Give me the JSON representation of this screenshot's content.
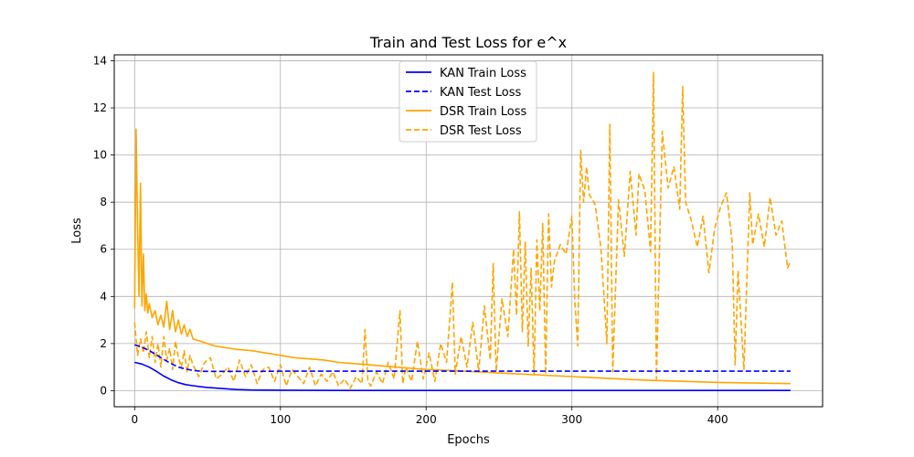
{
  "chart_data": {
    "type": "line",
    "title": "Train and Test Loss for e^x",
    "xlabel": "Epochs",
    "ylabel": "Loss",
    "xlim": [
      -14,
      472
    ],
    "ylim": [
      -0.68,
      14.25
    ],
    "xticks": [
      0,
      100,
      200,
      300,
      400
    ],
    "yticks": [
      0,
      2,
      4,
      6,
      8,
      10,
      12,
      14
    ],
    "grid": true,
    "legend_position": "upper center",
    "series": [
      {
        "name": "KAN Train Loss",
        "color": "#0000ff",
        "style": "solid",
        "x": [
          0,
          5,
          10,
          15,
          20,
          25,
          30,
          35,
          40,
          45,
          50,
          60,
          70,
          80,
          100,
          150,
          200,
          300,
          400,
          450
        ],
        "y": [
          1.2,
          1.13,
          1.0,
          0.82,
          0.62,
          0.46,
          0.34,
          0.26,
          0.21,
          0.17,
          0.14,
          0.09,
          0.05,
          0.03,
          0.02,
          0.01,
          0.01,
          0.01,
          0.01,
          0.01
        ]
      },
      {
        "name": "KAN Test Loss",
        "color": "#0000ff",
        "style": "dashed",
        "x": [
          0,
          5,
          10,
          15,
          20,
          25,
          30,
          35,
          40,
          45,
          50,
          60,
          80,
          100,
          150,
          200,
          300,
          400,
          450
        ],
        "y": [
          1.95,
          1.85,
          1.7,
          1.52,
          1.33,
          1.15,
          1.0,
          0.92,
          0.86,
          0.83,
          0.82,
          0.82,
          0.82,
          0.83,
          0.83,
          0.83,
          0.83,
          0.83,
          0.83
        ]
      },
      {
        "name": "DSR Train Loss",
        "color": "#ffa500",
        "style": "solid",
        "x": [
          0,
          1,
          2,
          3,
          4,
          5,
          6,
          7,
          8,
          9,
          10,
          12,
          14,
          16,
          18,
          20,
          22,
          24,
          26,
          28,
          30,
          32,
          34,
          36,
          38,
          40,
          45,
          50,
          55,
          60,
          65,
          70,
          80,
          90,
          100,
          110,
          120,
          130,
          140,
          150,
          160,
          170,
          180,
          200,
          220,
          250,
          300,
          350,
          400,
          450
        ],
        "y": [
          3.5,
          11.1,
          7.0,
          4.0,
          8.8,
          3.6,
          5.8,
          3.4,
          4.1,
          3.3,
          3.7,
          3.1,
          3.4,
          2.8,
          3.2,
          2.7,
          3.8,
          2.6,
          3.4,
          2.5,
          3.0,
          2.4,
          2.8,
          2.3,
          2.6,
          2.2,
          2.1,
          2.0,
          1.9,
          1.85,
          1.8,
          1.75,
          1.7,
          1.6,
          1.5,
          1.4,
          1.35,
          1.3,
          1.2,
          1.15,
          1.1,
          1.05,
          1.0,
          0.9,
          0.85,
          0.75,
          0.6,
          0.45,
          0.35,
          0.3
        ]
      },
      {
        "name": "DSR Test Loss",
        "color": "#ffa500",
        "style": "dashed",
        "x": [
          0,
          2,
          4,
          6,
          8,
          10,
          12,
          14,
          16,
          18,
          20,
          22,
          24,
          26,
          28,
          30,
          32,
          34,
          36,
          38,
          40,
          44,
          48,
          52,
          56,
          60,
          64,
          68,
          72,
          76,
          80,
          84,
          88,
          92,
          96,
          100,
          104,
          108,
          112,
          116,
          120,
          124,
          128,
          132,
          136,
          140,
          144,
          148,
          152,
          156,
          158,
          160,
          162,
          166,
          170,
          174,
          178,
          182,
          184,
          186,
          190,
          194,
          198,
          202,
          206,
          210,
          214,
          218,
          220,
          224,
          228,
          232,
          236,
          240,
          244,
          246,
          248,
          252,
          256,
          260,
          262,
          264,
          266,
          268,
          270,
          272,
          274,
          276,
          278,
          280,
          282,
          284,
          286,
          288,
          292,
          296,
          300,
          302,
          304,
          306,
          308,
          310,
          312,
          316,
          320,
          324,
          326,
          328,
          332,
          336,
          340,
          344,
          346,
          350,
          354,
          356,
          358,
          362,
          366,
          370,
          374,
          376,
          378,
          382,
          386,
          390,
          394,
          398,
          402,
          406,
          410,
          412,
          414,
          418,
          422,
          424,
          428,
          432,
          436,
          440,
          444,
          448,
          450
        ],
        "y": [
          2.9,
          1.5,
          2.2,
          1.6,
          2.5,
          1.4,
          2.3,
          1.2,
          2.0,
          1.0,
          2.3,
          1.3,
          1.8,
          0.9,
          2.1,
          1.4,
          1.0,
          1.7,
          0.8,
          1.5,
          1.1,
          0.6,
          1.2,
          1.4,
          0.5,
          0.7,
          1.0,
          0.4,
          1.3,
          0.6,
          1.1,
          0.3,
          0.9,
          1.0,
          0.4,
          1.1,
          0.2,
          0.9,
          0.6,
          0.3,
          1.0,
          0.2,
          0.7,
          0.4,
          0.8,
          0.2,
          0.5,
          0.1,
          0.6,
          0.3,
          2.6,
          0.4,
          0.2,
          0.8,
          0.3,
          1.2,
          0.5,
          3.4,
          0.3,
          1.0,
          0.4,
          2.1,
          0.5,
          1.6,
          0.4,
          2.0,
          1.2,
          4.6,
          0.7,
          2.3,
          1.0,
          2.9,
          0.8,
          3.6,
          1.3,
          5.4,
          0.8,
          3.9,
          2.3,
          6.0,
          3.2,
          7.6,
          2.5,
          6.3,
          1.9,
          5.2,
          0.7,
          6.4,
          3.4,
          7.1,
          0.7,
          7.5,
          4.4,
          5.5,
          6.2,
          5.8,
          7.4,
          3.8,
          1.9,
          10.2,
          8.0,
          9.5,
          8.3,
          7.9,
          6.0,
          2.0,
          11.3,
          0.8,
          8.1,
          5.7,
          9.3,
          6.6,
          9.2,
          8.5,
          5.9,
          13.5,
          0.5,
          11.0,
          8.6,
          9.5,
          7.7,
          12.9,
          8.0,
          7.2,
          6.1,
          7.4,
          5.0,
          6.9,
          7.8,
          8.4,
          6.3,
          1.1,
          5.1,
          0.9,
          8.4,
          6.2,
          7.5,
          6.1,
          8.2,
          6.6,
          7.2,
          5.2,
          5.5
        ]
      }
    ]
  }
}
